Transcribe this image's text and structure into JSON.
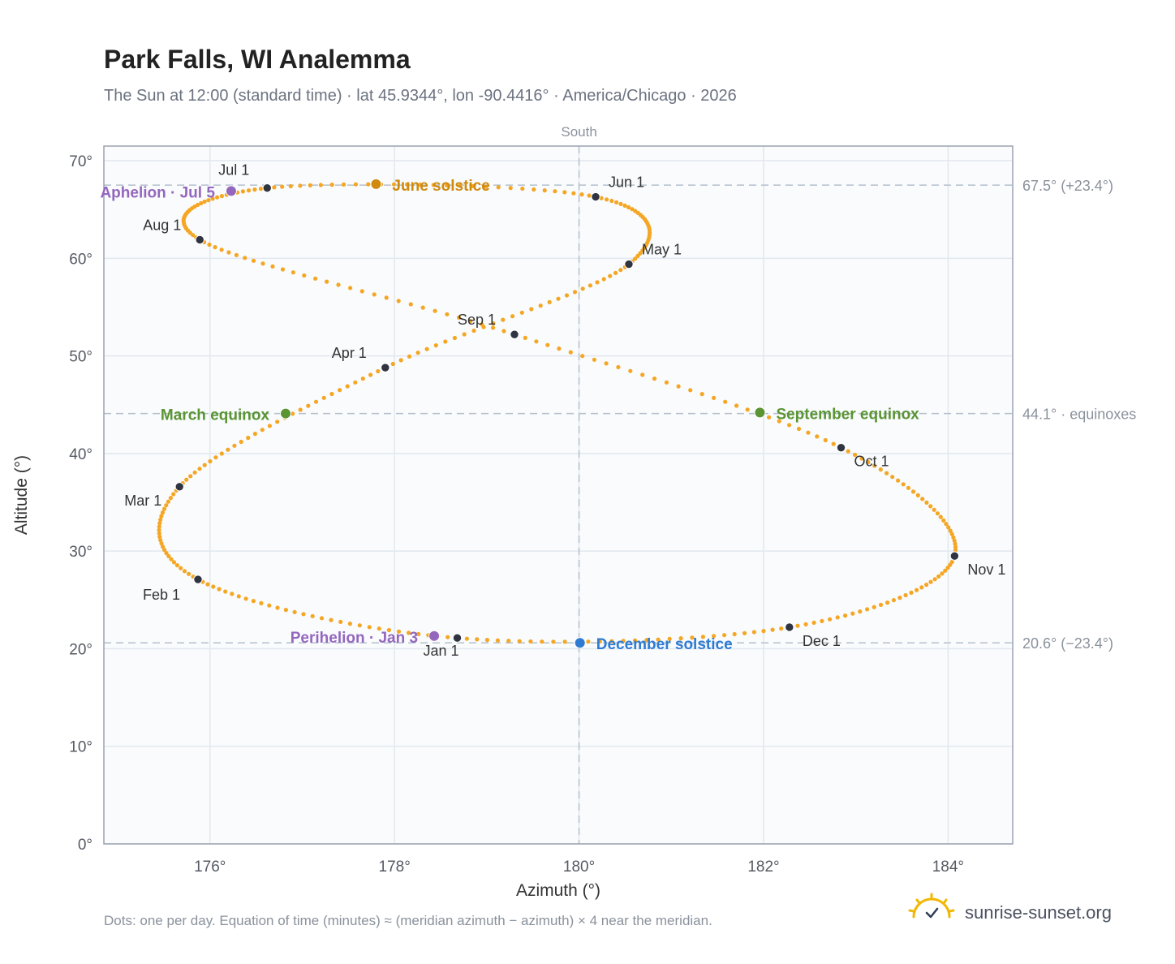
{
  "chart_data": {
    "type": "scatter",
    "title": "Park Falls, WI Analemma",
    "subtitle": "The Sun at 12:00 (standard time) · lat 45.9344°, lon -90.4416° · America/Chicago · 2026",
    "xlabel": "Azimuth (°)",
    "ylabel": "Altitude (°)",
    "xlim": [
      174.85,
      184.7
    ],
    "ylim": [
      0,
      71.5
    ],
    "x_ticks": [
      176,
      178,
      180,
      182,
      184
    ],
    "x_tick_labels": [
      "176°",
      "178°",
      "180°",
      "182°",
      "184°"
    ],
    "y_ticks": [
      0,
      10,
      20,
      30,
      40,
      50,
      60,
      70
    ],
    "y_tick_labels": [
      "0°",
      "10°",
      "20°",
      "30°",
      "40°",
      "50°",
      "60°",
      "70°"
    ],
    "grid": true,
    "south_line": {
      "x": 180,
      "label": "South"
    },
    "reference_lines": [
      {
        "y": 67.5,
        "label": "67.5° (+23.4°)"
      },
      {
        "y": 44.1,
        "label": "44.1° · equinoxes"
      },
      {
        "y": 20.6,
        "label": "20.6° (−23.4°)"
      }
    ],
    "curve_color": "#f5a623",
    "month_points": [
      {
        "label": "Jan 1",
        "az": 178.68,
        "alt": 21.1
      },
      {
        "label": "Feb 1",
        "az": 175.87,
        "alt": 27.1
      },
      {
        "label": "Mar 1",
        "az": 175.67,
        "alt": 36.6
      },
      {
        "label": "Apr 1",
        "az": 177.9,
        "alt": 48.8
      },
      {
        "label": "May 1",
        "az": 180.54,
        "alt": 59.4
      },
      {
        "label": "Jun 1",
        "az": 180.18,
        "alt": 66.3
      },
      {
        "label": "Jul 1",
        "az": 176.62,
        "alt": 67.2
      },
      {
        "label": "Aug 1",
        "az": 175.89,
        "alt": 61.9
      },
      {
        "label": "Sep 1",
        "az": 179.3,
        "alt": 52.2
      },
      {
        "label": "Oct 1",
        "az": 182.84,
        "alt": 40.6
      },
      {
        "label": "Nov 1",
        "az": 184.07,
        "alt": 29.5
      },
      {
        "label": "Dec 1",
        "az": 182.28,
        "alt": 22.2
      }
    ],
    "events": [
      {
        "label": "June solstice",
        "az": 177.8,
        "alt": 67.6,
        "color": "#d08a0e"
      },
      {
        "label": "Aphelion · Jul 5",
        "az": 176.23,
        "alt": 66.9,
        "color": "#9467bd"
      },
      {
        "label": "March equinox",
        "az": 176.82,
        "alt": 44.1,
        "color": "#5a9433"
      },
      {
        "label": "September equinox",
        "az": 181.96,
        "alt": 44.2,
        "color": "#5a9433"
      },
      {
        "label": "Perihelion · Jan 3",
        "az": 178.43,
        "alt": 21.3,
        "color": "#9467bd"
      },
      {
        "label": "December solstice",
        "az": 180.01,
        "alt": 20.6,
        "color": "#2f7bd4"
      }
    ],
    "footnote": "Dots: one per day. Equation of time (minutes) ≈ (meridian azimuth − azimuth) × 4 near the meridian.",
    "brand": "sunrise-sunset.org"
  }
}
